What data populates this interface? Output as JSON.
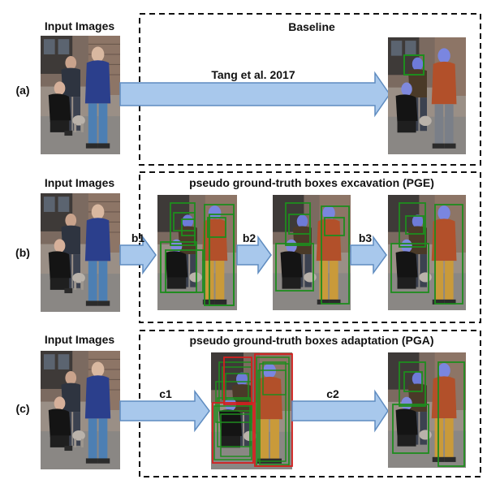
{
  "rows": [
    {
      "id": "a",
      "row_label": "(a)",
      "input_caption": "Input Images",
      "panel_title": "Baseline",
      "arrows": [
        {
          "label": "Tang et al. 2017"
        }
      ],
      "outputs": [
        {
          "name": "baseline-output",
          "boxes": [
            {
              "color": "#2a8a2a"
            }
          ]
        }
      ]
    },
    {
      "id": "b",
      "row_label": "(b)",
      "input_caption": "Input Images",
      "panel_title": "pseudo ground-truth boxes excavation (PGE)",
      "arrows": [
        {
          "label": "b1"
        },
        {
          "label": "b2"
        },
        {
          "label": "b3"
        }
      ],
      "outputs": [
        {
          "name": "pge-step1-output"
        },
        {
          "name": "pge-step2-output"
        },
        {
          "name": "pge-step3-output"
        }
      ]
    },
    {
      "id": "c",
      "row_label": "(c)",
      "input_caption": "Input Images",
      "panel_title": "pseudo ground-truth boxes adaptation (PGA)",
      "arrows": [
        {
          "label": "c1"
        },
        {
          "label": "c2"
        }
      ],
      "outputs": [
        {
          "name": "pga-candidates-output"
        },
        {
          "name": "pga-final-output"
        }
      ]
    }
  ],
  "colors": {
    "arrow_fill": "#a8c8ec",
    "arrow_stroke": "#5f8cc0",
    "box_green": "#1e8c1e",
    "box_red": "#d42020",
    "dashed_border": "#111111"
  }
}
